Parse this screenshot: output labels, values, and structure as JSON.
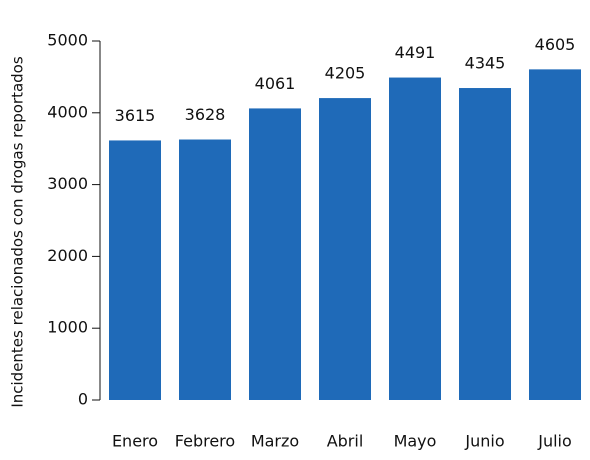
{
  "chart_data": {
    "type": "bar",
    "y_label": "Incidentes relacionados con drogas reportados",
    "categories": [
      "Enero",
      "Febrero",
      "Marzo",
      "Abril",
      "Mayo",
      "Junio",
      "Julio"
    ],
    "values": [
      3615,
      3628,
      4061,
      4205,
      4491,
      4345,
      4605
    ],
    "color": "#1f6ab8",
    "ylim": [
      0,
      5000
    ],
    "yticks": [
      0,
      1000,
      2000,
      3000,
      4000,
      5000
    ],
    "grid": false
  }
}
